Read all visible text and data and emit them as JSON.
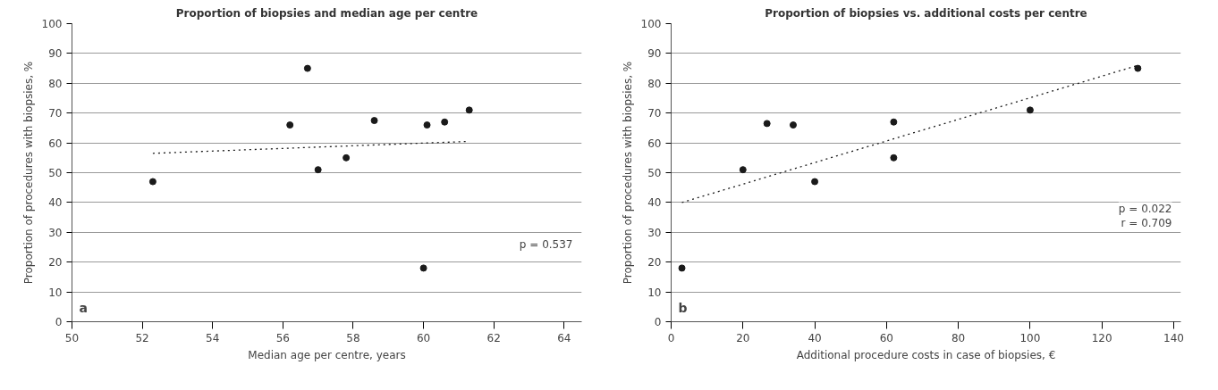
{
  "chart_data": [
    {
      "type": "scatter",
      "title": "Proportion of biopsies and median age per centre",
      "xlabel": "Median age per centre, years",
      "ylabel": "Proportion of procedures with biopsies, %",
      "annotations": [
        "a",
        "p = 0.537"
      ],
      "series": [
        {
          "color": "#1a1a1a",
          "marker": "circle",
          "x": [
            52.3,
            56.2,
            56.7,
            57.0,
            57.8,
            58.6,
            60.0,
            60.1,
            60.6,
            61.3
          ],
          "values": [
            47,
            66,
            85,
            51,
            55,
            67.5,
            18,
            66,
            67,
            71
          ]
        },
        {
          "type": "line",
          "color": "#1a1a1a",
          "line_style": "dotted",
          "x": [
            52.3,
            61.3
          ],
          "values": [
            56.5,
            60.5
          ]
        }
      ],
      "xlim": [
        50,
        64.5
      ],
      "xticks": [
        50,
        52,
        54,
        56,
        58,
        60,
        62,
        64
      ],
      "ylim": [
        0,
        100
      ],
      "yticks": [
        0,
        10,
        20,
        30,
        40,
        50,
        60,
        70,
        80,
        90,
        100
      ],
      "grid": "y"
    },
    {
      "type": "scatter",
      "title": "Proportion of biopsies vs. additional costs per centre",
      "xlabel": "Additional procedure costs in case of biopsies, €",
      "ylabel": "Proportion of procedures with biopsies, %",
      "annotations": [
        "b",
        "p = 0.022",
        "r = 0.709"
      ],
      "series": [
        {
          "color": "#1a1a1a",
          "marker": "circle",
          "x": [
            3,
            20,
            26.7,
            34,
            40,
            62,
            62,
            100,
            130
          ],
          "values": [
            18,
            51,
            66.5,
            66,
            47,
            67,
            55,
            71,
            85
          ]
        },
        {
          "type": "line",
          "color": "#1a1a1a",
          "line_style": "dotted",
          "x": [
            3,
            130
          ],
          "values": [
            40,
            86
          ]
        }
      ],
      "xlim": [
        0,
        142
      ],
      "xticks": [
        0,
        20,
        40,
        60,
        80,
        100,
        120,
        140
      ],
      "ylim": [
        0,
        100
      ],
      "yticks": [
        0,
        10,
        20,
        30,
        40,
        50,
        60,
        70,
        80,
        90,
        100
      ],
      "grid": "y"
    }
  ]
}
